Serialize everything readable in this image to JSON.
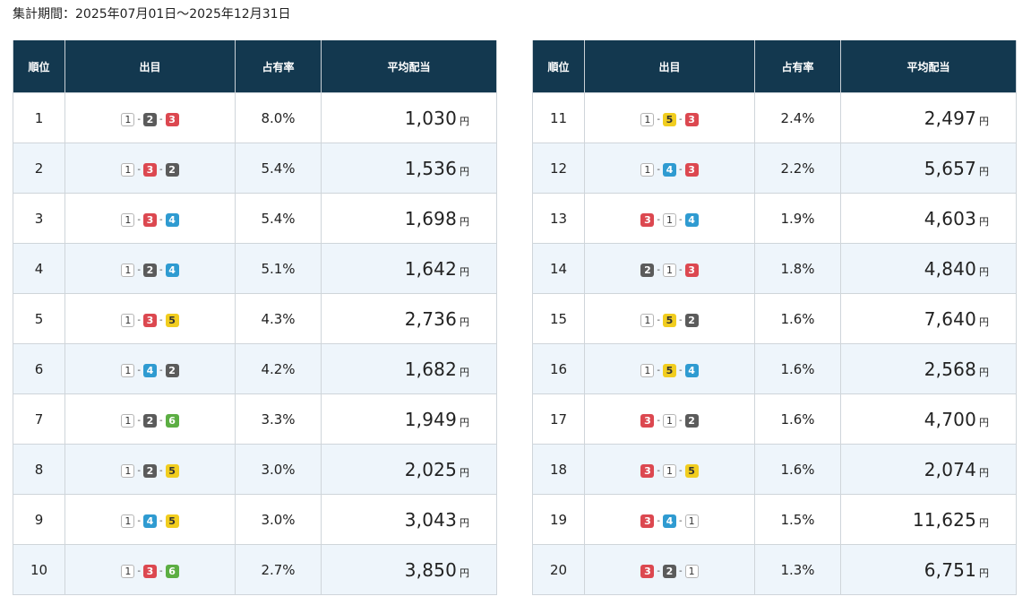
{
  "period_text": "集計期間：2025年07月01日〜2025年12月31日",
  "headers": {
    "rank": "順位",
    "combination": "出目",
    "share": "占有率",
    "avg_payout": "平均配当"
  },
  "currency_unit": "円",
  "boat_colors": {
    "1": "#ffffff",
    "2": "#5b5b5b",
    "3": "#dc4850",
    "4": "#2f9bd1",
    "5": "#f1cd1f",
    "6": "#5cae43"
  },
  "rows": [
    {
      "rank": "1",
      "combo": [
        "1",
        "2",
        "3"
      ],
      "share": "8.0%",
      "payout": "1,030"
    },
    {
      "rank": "2",
      "combo": [
        "1",
        "3",
        "2"
      ],
      "share": "5.4%",
      "payout": "1,536"
    },
    {
      "rank": "3",
      "combo": [
        "1",
        "3",
        "4"
      ],
      "share": "5.4%",
      "payout": "1,698"
    },
    {
      "rank": "4",
      "combo": [
        "1",
        "2",
        "4"
      ],
      "share": "5.1%",
      "payout": "1,642"
    },
    {
      "rank": "5",
      "combo": [
        "1",
        "3",
        "5"
      ],
      "share": "4.3%",
      "payout": "2,736"
    },
    {
      "rank": "6",
      "combo": [
        "1",
        "4",
        "2"
      ],
      "share": "4.2%",
      "payout": "1,682"
    },
    {
      "rank": "7",
      "combo": [
        "1",
        "2",
        "6"
      ],
      "share": "3.3%",
      "payout": "1,949"
    },
    {
      "rank": "8",
      "combo": [
        "1",
        "2",
        "5"
      ],
      "share": "3.0%",
      "payout": "2,025"
    },
    {
      "rank": "9",
      "combo": [
        "1",
        "4",
        "5"
      ],
      "share": "3.0%",
      "payout": "3,043"
    },
    {
      "rank": "10",
      "combo": [
        "1",
        "3",
        "6"
      ],
      "share": "2.7%",
      "payout": "3,850"
    },
    {
      "rank": "11",
      "combo": [
        "1",
        "5",
        "3"
      ],
      "share": "2.4%",
      "payout": "2,497"
    },
    {
      "rank": "12",
      "combo": [
        "1",
        "4",
        "3"
      ],
      "share": "2.2%",
      "payout": "5,657"
    },
    {
      "rank": "13",
      "combo": [
        "3",
        "1",
        "4"
      ],
      "share": "1.9%",
      "payout": "4,603"
    },
    {
      "rank": "14",
      "combo": [
        "2",
        "1",
        "3"
      ],
      "share": "1.8%",
      "payout": "4,840"
    },
    {
      "rank": "15",
      "combo": [
        "1",
        "5",
        "2"
      ],
      "share": "1.6%",
      "payout": "7,640"
    },
    {
      "rank": "16",
      "combo": [
        "1",
        "5",
        "4"
      ],
      "share": "1.6%",
      "payout": "2,568"
    },
    {
      "rank": "17",
      "combo": [
        "3",
        "1",
        "2"
      ],
      "share": "1.6%",
      "payout": "4,700"
    },
    {
      "rank": "18",
      "combo": [
        "3",
        "1",
        "5"
      ],
      "share": "1.6%",
      "payout": "2,074"
    },
    {
      "rank": "19",
      "combo": [
        "3",
        "4",
        "1"
      ],
      "share": "1.5%",
      "payout": "11,625"
    },
    {
      "rank": "20",
      "combo": [
        "3",
        "2",
        "1"
      ],
      "share": "1.3%",
      "payout": "6,751"
    }
  ]
}
